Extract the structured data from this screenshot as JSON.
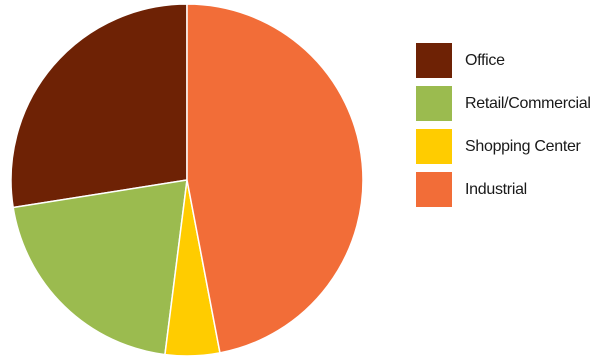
{
  "chart_data": {
    "type": "pie",
    "title": "",
    "categories": [
      "Office",
      "Retail/Commercial",
      "Shopping Center",
      "Industrial"
    ],
    "values": [
      27.5,
      20.5,
      5.0,
      47.0
    ],
    "colors": [
      "#6e2205",
      "#9bbb4f",
      "#ffcc00",
      "#f26d38"
    ],
    "start_angle_deg": 0,
    "direction": "counterclockwise",
    "legend_position": "right"
  }
}
